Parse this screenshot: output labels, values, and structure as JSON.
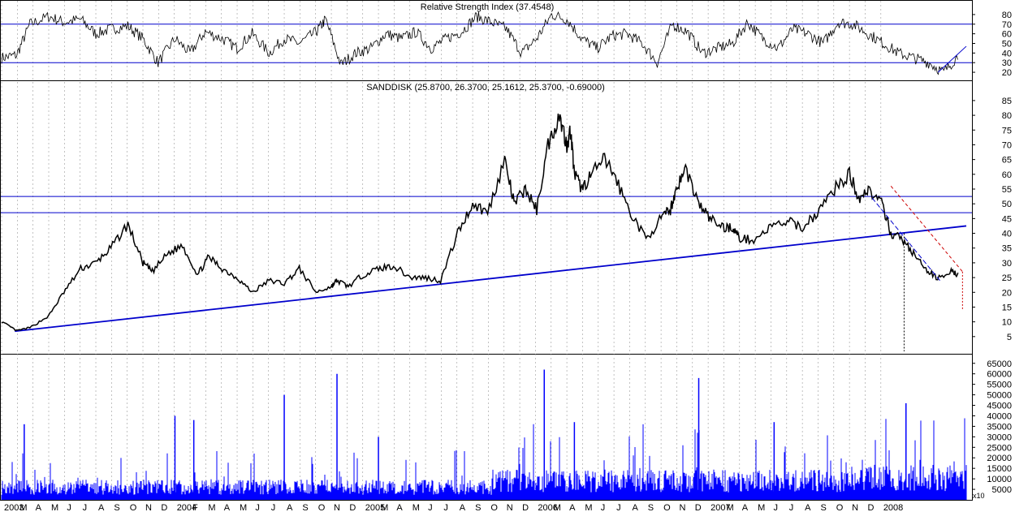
{
  "rsi": {
    "title": "Relative Strength Index (37.4548)",
    "ticks": [
      20,
      30,
      40,
      50,
      60,
      70,
      80
    ],
    "ylim": [
      15,
      85
    ],
    "levels": [
      30,
      70
    ],
    "level_color": "#0000cc"
  },
  "price": {
    "title": "SANDDISK (25.8700, 26.3700, 25.1612, 25.3700, -0.69000)",
    "ticks": [
      5,
      10,
      15,
      20,
      25,
      30,
      35,
      40,
      45,
      50,
      55,
      60,
      65,
      70,
      75,
      80,
      85
    ],
    "ylim": [
      0,
      88
    ],
    "support_lines": [
      52.5,
      47
    ],
    "line_color": "#0000cc",
    "trend_color": "#cc0000"
  },
  "volume": {
    "ticks": [
      5000,
      10000,
      15000,
      20000,
      25000,
      30000,
      35000,
      40000,
      45000,
      50000,
      55000,
      60000,
      65000
    ],
    "ylim": [
      0,
      68000
    ],
    "scale_label": "x10",
    "bar_color": "#0000ff"
  },
  "axis": {
    "months": [
      {
        "label": "2003",
        "year": true
      },
      {
        "label": "M"
      },
      {
        "label": "A"
      },
      {
        "label": "M"
      },
      {
        "label": "J"
      },
      {
        "label": "J"
      },
      {
        "label": "A"
      },
      {
        "label": "S"
      },
      {
        "label": "O"
      },
      {
        "label": "N"
      },
      {
        "label": "D"
      },
      {
        "label": "2004",
        "year": true
      },
      {
        "label": "F"
      },
      {
        "label": "M"
      },
      {
        "label": "A"
      },
      {
        "label": "M"
      },
      {
        "label": "J"
      },
      {
        "label": "J"
      },
      {
        "label": "A"
      },
      {
        "label": "S"
      },
      {
        "label": "O"
      },
      {
        "label": "N"
      },
      {
        "label": "D"
      },
      {
        "label": "2005",
        "year": true
      },
      {
        "label": "M"
      },
      {
        "label": "A"
      },
      {
        "label": "M"
      },
      {
        "label": "J"
      },
      {
        "label": "J"
      },
      {
        "label": "A"
      },
      {
        "label": "S"
      },
      {
        "label": "O"
      },
      {
        "label": "N"
      },
      {
        "label": "D"
      },
      {
        "label": "2006",
        "year": true
      },
      {
        "label": "M"
      },
      {
        "label": "A"
      },
      {
        "label": "M"
      },
      {
        "label": "J"
      },
      {
        "label": "J"
      },
      {
        "label": "A"
      },
      {
        "label": "S"
      },
      {
        "label": "O"
      },
      {
        "label": "N"
      },
      {
        "label": "D"
      },
      {
        "label": "2007",
        "year": true
      },
      {
        "label": "M"
      },
      {
        "label": "A"
      },
      {
        "label": "M"
      },
      {
        "label": "J"
      },
      {
        "label": "J"
      },
      {
        "label": "A"
      },
      {
        "label": "S"
      },
      {
        "label": "O"
      },
      {
        "label": "N"
      },
      {
        "label": "D"
      },
      {
        "label": "2008",
        "year": true
      }
    ]
  },
  "chart_data": {
    "type": "line",
    "series": [
      {
        "name": "SANDDISK",
        "t": [
          2003.0,
          2003.08,
          2003.15,
          2003.25,
          2003.33,
          2003.42,
          2003.5,
          2003.58,
          2003.67,
          2003.75,
          2003.8,
          2003.88,
          2003.96,
          2004.04,
          2004.1,
          2004.17,
          2004.25,
          2004.33,
          2004.42,
          2004.5,
          2004.58,
          2004.67,
          2004.75,
          2004.78,
          2004.84,
          2004.92,
          2005.0,
          2005.08,
          2005.17,
          2005.25,
          2005.33,
          2005.42,
          2005.5,
          2005.58,
          2005.67,
          2005.72,
          2005.78,
          2005.84,
          2005.9,
          2005.96,
          2006.0,
          2006.02,
          2006.04,
          2006.08,
          2006.13,
          2006.2,
          2006.25,
          2006.33,
          2006.42,
          2006.5,
          2006.55,
          2006.58,
          2006.63,
          2006.7,
          2006.76,
          2006.83,
          2006.88,
          2006.92,
          2007.0,
          2007.08,
          2007.17,
          2007.25,
          2007.33,
          2007.42,
          2007.5,
          2007.55,
          2007.6,
          2007.67,
          2007.72,
          2007.78,
          2007.84,
          2007.9,
          2007.96,
          2008.04,
          2008.08
        ],
        "values": [
          10,
          7,
          8,
          12,
          20,
          28,
          30,
          35,
          43,
          30,
          27,
          33,
          36,
          26,
          32,
          28,
          25,
          20,
          24,
          23,
          28,
          20,
          22,
          24,
          22,
          26,
          28,
          29,
          25,
          25,
          24,
          40,
          50,
          47,
          65,
          50,
          55,
          48,
          70,
          80,
          70,
          75,
          60,
          55,
          60,
          65,
          60,
          48,
          38,
          45,
          48,
          55,
          62,
          50,
          45,
          42,
          42,
          38,
          38,
          42,
          44,
          42,
          47,
          55,
          60,
          52,
          55,
          50,
          40,
          38,
          33,
          28,
          25,
          27,
          26
        ]
      }
    ],
    "rsi": {
      "name": "Relative Strength Index",
      "t": [
        2003.0,
        2003.08,
        2003.15,
        2003.25,
        2003.33,
        2003.42,
        2003.5,
        2003.58,
        2003.67,
        2003.75,
        2003.83,
        2003.92,
        2004.0,
        2004.08,
        2004.17,
        2004.25,
        2004.33,
        2004.42,
        2004.5,
        2004.58,
        2004.67,
        2004.72,
        2004.8,
        2004.88,
        2004.96,
        2005.04,
        2005.12,
        2005.2,
        2005.28,
        2005.36,
        2005.44,
        2005.52,
        2005.6,
        2005.68,
        2005.76,
        2005.84,
        2005.92,
        2006.0,
        2006.08,
        2006.16,
        2006.24,
        2006.32,
        2006.4,
        2006.48,
        2006.56,
        2006.64,
        2006.72,
        2006.8,
        2006.88,
        2006.96,
        2007.04,
        2007.12,
        2007.2,
        2007.28,
        2007.36,
        2007.44,
        2007.52,
        2007.6,
        2007.68,
        2007.76,
        2007.84,
        2007.92,
        2008.0,
        2008.08
      ],
      "values": [
        35,
        38,
        70,
        78,
        72,
        75,
        60,
        65,
        68,
        55,
        30,
        55,
        40,
        62,
        55,
        45,
        60,
        40,
        55,
        50,
        62,
        75,
        28,
        40,
        45,
        60,
        55,
        62,
        45,
        55,
        62,
        78,
        72,
        65,
        40,
        55,
        80,
        75,
        55,
        45,
        58,
        60,
        50,
        30,
        70,
        62,
        40,
        45,
        50,
        72,
        55,
        45,
        65,
        60,
        50,
        72,
        70,
        60,
        50,
        40,
        35,
        30,
        20,
        38
      ]
    },
    "volume": {
      "name": "Volume",
      "spikes": [
        {
          "t": 2003.12,
          "value": 36000
        },
        {
          "t": 2003.92,
          "value": 40000
        },
        {
          "t": 2004.02,
          "value": 38000
        },
        {
          "t": 2004.5,
          "value": 50000
        },
        {
          "t": 2004.78,
          "value": 60000
        },
        {
          "t": 2005.0,
          "value": 30000
        },
        {
          "t": 2005.88,
          "value": 62000
        },
        {
          "t": 2006.04,
          "value": 37000
        },
        {
          "t": 2006.7,
          "value": 58000
        },
        {
          "t": 2007.1,
          "value": 37000
        },
        {
          "t": 2007.8,
          "value": 46000
        }
      ]
    }
  }
}
